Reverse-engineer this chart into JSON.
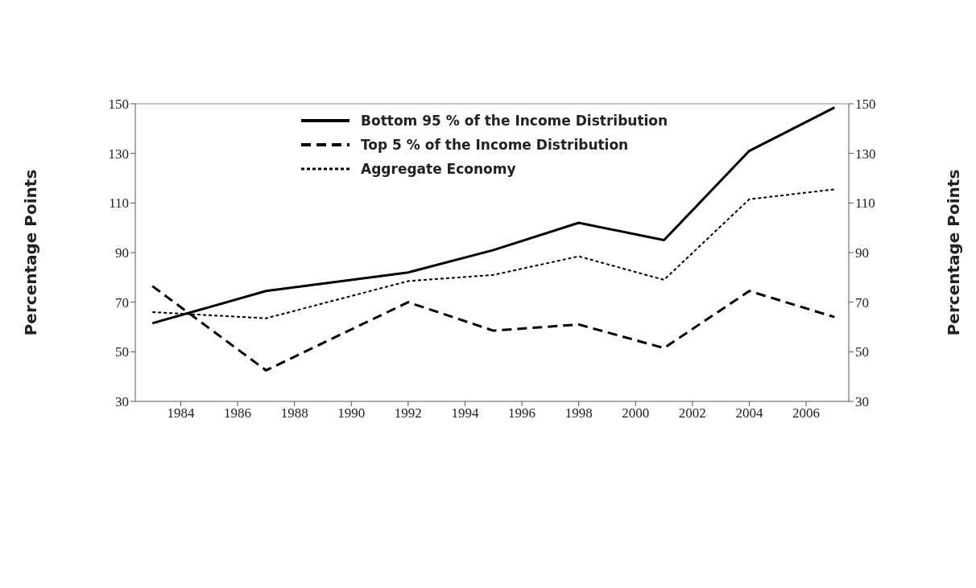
{
  "chart_data": {
    "type": "line",
    "x": [
      1983,
      1987,
      1992,
      1995,
      1998,
      2001,
      2004,
      2007
    ],
    "series": [
      {
        "name": "Bottom 95 % of the Income Distribution",
        "color": "#000000",
        "line_style": "solid",
        "values": [
          61.5,
          74.5,
          82,
          91,
          102,
          95,
          131,
          148.5
        ]
      },
      {
        "name": "Top 5 % of the Income Distribution",
        "color": "#000000",
        "line_style": "dashed",
        "values": [
          76.5,
          42.5,
          70,
          58.5,
          61,
          51.5,
          74.5,
          64
        ]
      },
      {
        "name": "Aggregate Economy",
        "color": "#000000",
        "line_style": "dotted",
        "values": [
          66,
          63.5,
          78.5,
          81,
          88.5,
          79,
          111.5,
          115.5
        ]
      }
    ],
    "xlim": [
      1982.4,
      2007.5
    ],
    "xticks": [
      1984,
      1986,
      1988,
      1990,
      1992,
      1994,
      1996,
      1998,
      2000,
      2002,
      2004,
      2006
    ],
    "ylim": [
      30,
      150
    ],
    "yticks": [
      30,
      50,
      70,
      90,
      110,
      130,
      150
    ],
    "y2lim": [
      30,
      150
    ],
    "y2ticks": [
      30,
      50,
      70,
      90,
      110,
      130,
      150
    ],
    "ylabel": "Percentage Points",
    "y2label": "Percentage Points",
    "legend": "top",
    "grid": false,
    "marker": "none"
  }
}
